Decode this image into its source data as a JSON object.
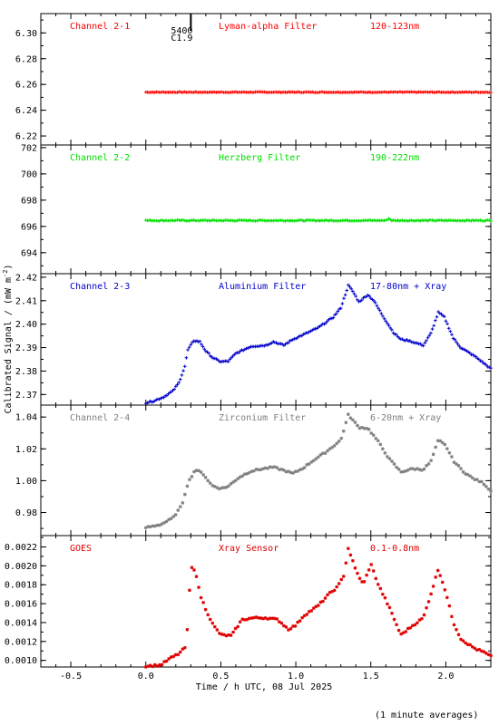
{
  "figure": {
    "xlabel": "Time / h UTC, 08 Jul 2025",
    "ylabel": "Calibrated Signal / (mW m",
    "ylabel_sup": "-2",
    "ylabel_close": ")",
    "footnote": "(1 minute averages)",
    "marker": {
      "x": 0.3,
      "label_top": "5400",
      "label_bottom": "C1.9"
    }
  },
  "chart_data": [
    {
      "type": "scatter",
      "channel": "Channel 2-1",
      "filter": "Lyman-alpha Filter",
      "band": "120-123nm",
      "color": "#ff0000",
      "marker": "+",
      "xlim": [
        -0.7,
        2.3
      ],
      "ylim": [
        6.213,
        6.315
      ],
      "yticks": [
        6.22,
        6.24,
        6.26,
        6.28,
        6.3
      ],
      "ytick_labels": [
        "6.22",
        "6.24",
        "6.26",
        "6.28",
        "6.30"
      ],
      "keypoints": [
        [
          0.0,
          6.254
        ],
        [
          2.3,
          6.254
        ]
      ],
      "noise": 0.0003
    },
    {
      "type": "scatter",
      "channel": "Channel 2-2",
      "filter": "Herzberg Filter",
      "band": "190-222nm",
      "color": "#00e000",
      "marker": "+",
      "xlim": [
        -0.7,
        2.3
      ],
      "ylim": [
        692.4,
        702.2
      ],
      "yticks": [
        694,
        696,
        698,
        700,
        702
      ],
      "ytick_labels": [
        "694",
        "696",
        "698",
        "700",
        "702"
      ],
      "keypoints": [
        [
          0.0,
          696.45
        ],
        [
          1.6,
          696.45
        ],
        [
          1.62,
          696.6
        ],
        [
          1.64,
          696.45
        ],
        [
          2.3,
          696.45
        ]
      ],
      "noise": 0.04
    },
    {
      "type": "scatter",
      "channel": "Channel 2-3",
      "filter": "Aluminium Filter",
      "band": "17-80nm + Xray",
      "color": "#0000cc",
      "marker": "+",
      "xlim": [
        -0.7,
        2.3
      ],
      "ylim": [
        2.3655,
        2.4215
      ],
      "yticks": [
        2.37,
        2.38,
        2.39,
        2.4,
        2.41,
        2.42
      ],
      "ytick_labels": [
        "2.37",
        "2.38",
        "2.39",
        "2.40",
        "2.41",
        "2.42"
      ],
      "keypoints": [
        [
          0.0,
          2.3665
        ],
        [
          0.05,
          2.3672
        ],
        [
          0.12,
          2.369
        ],
        [
          0.18,
          2.3715
        ],
        [
          0.22,
          2.375
        ],
        [
          0.26,
          2.382
        ],
        [
          0.28,
          2.389
        ],
        [
          0.32,
          2.393
        ],
        [
          0.36,
          2.3925
        ],
        [
          0.4,
          2.3885
        ],
        [
          0.45,
          2.3855
        ],
        [
          0.5,
          2.384
        ],
        [
          0.55,
          2.3842
        ],
        [
          0.6,
          2.3875
        ],
        [
          0.7,
          2.3905
        ],
        [
          0.8,
          2.391
        ],
        [
          0.85,
          2.3925
        ],
        [
          0.92,
          2.391
        ],
        [
          0.98,
          2.3935
        ],
        [
          1.05,
          2.3955
        ],
        [
          1.15,
          2.3985
        ],
        [
          1.25,
          2.403
        ],
        [
          1.3,
          2.407
        ],
        [
          1.35,
          2.4165
        ],
        [
          1.38,
          2.414
        ],
        [
          1.42,
          2.4095
        ],
        [
          1.48,
          2.4125
        ],
        [
          1.52,
          2.41
        ],
        [
          1.58,
          2.4035
        ],
        [
          1.65,
          2.3965
        ],
        [
          1.7,
          2.3935
        ],
        [
          1.75,
          2.393
        ],
        [
          1.8,
          2.392
        ],
        [
          1.85,
          2.391
        ],
        [
          1.9,
          2.396
        ],
        [
          1.95,
          2.405
        ],
        [
          1.99,
          2.403
        ],
        [
          2.05,
          2.394
        ],
        [
          2.1,
          2.39
        ],
        [
          2.15,
          2.388
        ],
        [
          2.2,
          2.386
        ],
        [
          2.25,
          2.3835
        ],
        [
          2.3,
          2.381
        ]
      ],
      "noise": 0.0003
    },
    {
      "type": "scatter",
      "channel": "Channel 2-4",
      "filter": "Zirconium Filter",
      "band": "6-20nm + Xray",
      "color": "#808080",
      "marker": "*",
      "xlim": [
        -0.7,
        2.3
      ],
      "ylim": [
        0.9655,
        1.0475
      ],
      "yticks": [
        0.98,
        1.0,
        1.02,
        1.04
      ],
      "ytick_labels": [
        "0.98",
        "1.00",
        "1.02",
        "1.04"
      ],
      "keypoints": [
        [
          0.0,
          0.9705
        ],
        [
          0.1,
          0.9725
        ],
        [
          0.18,
          0.9765
        ],
        [
          0.24,
          0.9845
        ],
        [
          0.28,
          0.9985
        ],
        [
          0.33,
          1.007
        ],
        [
          0.38,
          1.0045
        ],
        [
          0.44,
          0.997
        ],
        [
          0.5,
          0.995
        ],
        [
          0.55,
          0.9965
        ],
        [
          0.62,
          1.002
        ],
        [
          0.7,
          1.006
        ],
        [
          0.78,
          1.0075
        ],
        [
          0.85,
          1.0085
        ],
        [
          0.92,
          1.0065
        ],
        [
          0.98,
          1.0045
        ],
        [
          1.05,
          1.008
        ],
        [
          1.12,
          1.013
        ],
        [
          1.2,
          1.018
        ],
        [
          1.3,
          1.0255
        ],
        [
          1.35,
          1.0415
        ],
        [
          1.42,
          1.0335
        ],
        [
          1.48,
          1.033
        ],
        [
          1.55,
          1.0245
        ],
        [
          1.62,
          1.014
        ],
        [
          1.7,
          1.0055
        ],
        [
          1.78,
          1.0075
        ],
        [
          1.85,
          1.007
        ],
        [
          1.9,
          1.012
        ],
        [
          1.95,
          1.0255
        ],
        [
          2.0,
          1.022
        ],
        [
          2.05,
          1.0125
        ],
        [
          2.12,
          1.0055
        ],
        [
          2.18,
          1.0015
        ],
        [
          2.25,
          0.9985
        ],
        [
          2.3,
          0.9935
        ]
      ],
      "noise": 0.0005
    },
    {
      "type": "scatter",
      "channel": "GOES",
      "filter": "Xray Sensor",
      "band": "0.1-0.8nm",
      "color": "#e00000",
      "marker": "*",
      "xlim": [
        -0.7,
        2.3
      ],
      "ylim": [
        0.00093,
        0.00232
      ],
      "yticks": [
        0.001,
        0.0012,
        0.0014,
        0.0016,
        0.0018,
        0.002,
        0.0022
      ],
      "ytick_labels": [
        "0.0010",
        "0.0012",
        "0.0014",
        "0.0016",
        "0.0018",
        "0.0020",
        "0.0022"
      ],
      "keypoints": [
        [
          0.0,
          0.00094
        ],
        [
          0.1,
          0.00095
        ],
        [
          0.16,
          0.00102
        ],
        [
          0.22,
          0.00107
        ],
        [
          0.27,
          0.00115
        ],
        [
          0.3,
          0.00198
        ],
        [
          0.33,
          0.00196
        ],
        [
          0.36,
          0.0017
        ],
        [
          0.4,
          0.00154
        ],
        [
          0.45,
          0.00137
        ],
        [
          0.5,
          0.00127
        ],
        [
          0.57,
          0.00126
        ],
        [
          0.64,
          0.00143
        ],
        [
          0.72,
          0.00145
        ],
        [
          0.8,
          0.00145
        ],
        [
          0.88,
          0.00143
        ],
        [
          0.95,
          0.00133
        ],
        [
          1.0,
          0.00137
        ],
        [
          1.05,
          0.00147
        ],
        [
          1.15,
          0.00158
        ],
        [
          1.22,
          0.0017
        ],
        [
          1.28,
          0.00178
        ],
        [
          1.32,
          0.0019
        ],
        [
          1.35,
          0.00219
        ],
        [
          1.4,
          0.00195
        ],
        [
          1.45,
          0.0018
        ],
        [
          1.5,
          0.00202
        ],
        [
          1.55,
          0.0018
        ],
        [
          1.62,
          0.00157
        ],
        [
          1.7,
          0.00127
        ],
        [
          1.78,
          0.00137
        ],
        [
          1.85,
          0.00145
        ],
        [
          1.9,
          0.0017
        ],
        [
          1.95,
          0.00197
        ],
        [
          2.0,
          0.00172
        ],
        [
          2.05,
          0.0014
        ],
        [
          2.1,
          0.00123
        ],
        [
          2.15,
          0.00117
        ],
        [
          2.2,
          0.00112
        ],
        [
          2.25,
          0.00109
        ],
        [
          2.3,
          0.00104
        ]
      ],
      "noise": 1e-05
    }
  ],
  "xaxis": {
    "ticks": [
      -0.5,
      0.0,
      0.5,
      1.0,
      1.5,
      2.0
    ],
    "tick_labels": [
      "-0.5",
      "0.0",
      "0.5",
      "1.0",
      "1.5",
      "2.0"
    ]
  }
}
